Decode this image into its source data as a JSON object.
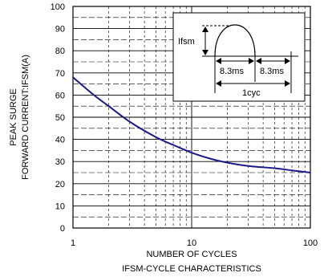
{
  "chart_data": {
    "type": "line",
    "title": "IFSM-CYCLE CHARACTERISTICS",
    "xlabel": "NUMBER OF CYCLES",
    "ylabel_lines": [
      "PEAK SURGE",
      "FORWARD CURRENT:IFSM(A)"
    ],
    "xscale": "log",
    "xlim": [
      1,
      100
    ],
    "ylim": [
      0,
      100
    ],
    "x_ticks": [
      "1",
      "10",
      "100"
    ],
    "y_ticks": [
      "0",
      "10",
      "20",
      "30",
      "40",
      "50",
      "60",
      "70",
      "80",
      "90",
      "100"
    ],
    "grid": true,
    "series": [
      {
        "x": [
          1,
          1.5,
          2,
          3,
          5,
          7,
          10,
          15,
          20,
          30,
          50,
          70,
          100
        ],
        "values": [
          68,
          60,
          55,
          48,
          41,
          37.5,
          34,
          31,
          29.5,
          28,
          27,
          26,
          25
        ],
        "color": "#1a1a8c"
      }
    ],
    "inset": {
      "ifsm_label": "Ifsm",
      "period_label_1": "8.3ms",
      "period_label_2": "8.3ms",
      "cycle_label": "1cyc"
    }
  }
}
